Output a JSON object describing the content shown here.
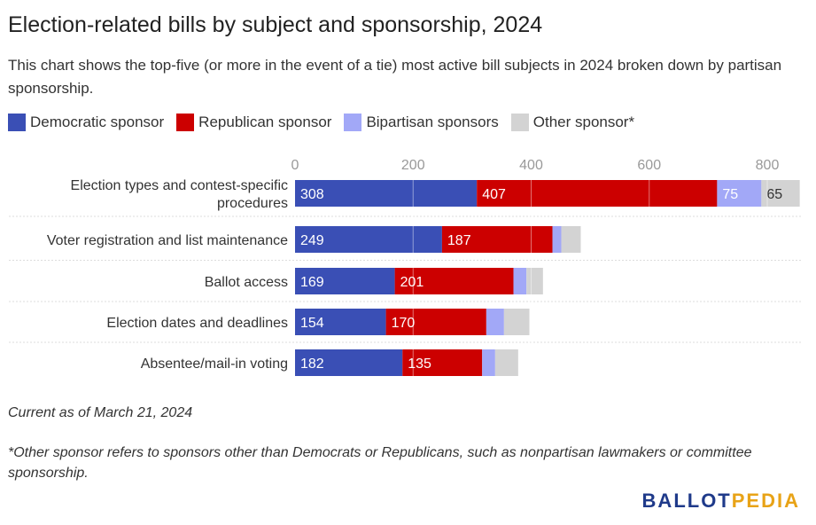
{
  "title": "Election-related bills by subject and sponsorship, 2024",
  "subtitle": "This chart shows the top-five (or more in the event of a tie) most active bill subjects in 2024 broken down by partisan sponsorship.",
  "legend": [
    {
      "label": "Democratic sponsor",
      "color": "#3a4fb5"
    },
    {
      "label": "Republican sponsor",
      "color": "#cc0000"
    },
    {
      "label": "Bipartisan sponsors",
      "color": "#a2a8f7"
    },
    {
      "label": "Other sponsor*",
      "color": "#d3d3d3"
    }
  ],
  "chart_data": {
    "type": "bar",
    "orientation": "horizontal",
    "stacked": true,
    "categories": [
      "Election types and contest-specific procedures",
      "Voter registration and list maintenance",
      "Ballot access",
      "Election dates and deadlines",
      "Absentee/mail-in voting"
    ],
    "series": [
      {
        "name": "Democratic sponsor",
        "color": "#3a4fb5",
        "values": [
          308,
          249,
          169,
          154,
          182
        ]
      },
      {
        "name": "Republican sponsor",
        "color": "#cc0000",
        "values": [
          407,
          187,
          201,
          170,
          135
        ]
      },
      {
        "name": "Bipartisan sponsors",
        "color": "#a2a8f7",
        "values": [
          75,
          15,
          22,
          30,
          22
        ]
      },
      {
        "name": "Other sponsor*",
        "color": "#d3d3d3",
        "values": [
          65,
          33,
          28,
          43,
          39
        ]
      }
    ],
    "value_labels_shown": [
      [
        true,
        true,
        true,
        true
      ],
      [
        true,
        true,
        false,
        false
      ],
      [
        true,
        true,
        false,
        false
      ],
      [
        true,
        true,
        false,
        false
      ],
      [
        true,
        true,
        false,
        false
      ]
    ],
    "xlim": [
      0,
      860
    ],
    "xticks": [
      0,
      200,
      400,
      600,
      800
    ],
    "axis_position": "top",
    "grid": true
  },
  "notes": {
    "date": "Current as of March 21, 2024",
    "footnote": "*Other sponsor refers to sponsors other than Democrats or Republicans, such as nonpartisan lawmakers or committee sponsorship."
  },
  "logo": {
    "part1": "BALLOT",
    "part2": "PEDIA"
  }
}
